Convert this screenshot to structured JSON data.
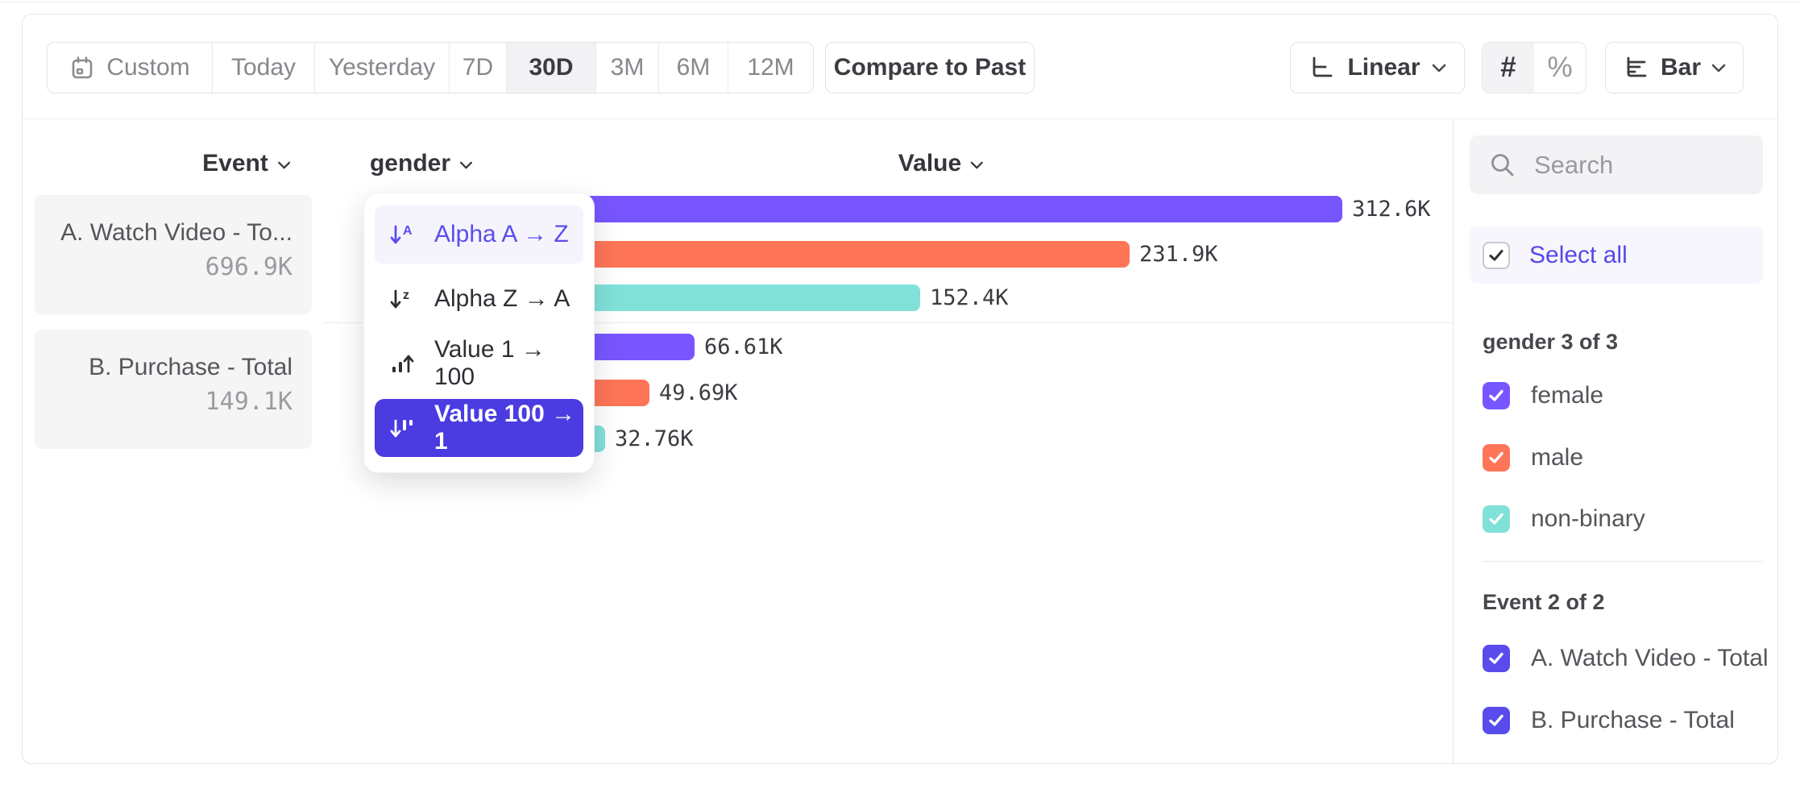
{
  "toolbar": {
    "date_ranges": [
      {
        "label": "Custom",
        "icon": "calendar-icon",
        "active": false
      },
      {
        "label": "Today",
        "active": false
      },
      {
        "label": "Yesterday",
        "active": false
      },
      {
        "label": "7D",
        "active": false
      },
      {
        "label": "30D",
        "active": true
      },
      {
        "label": "3M",
        "active": false
      },
      {
        "label": "6M",
        "active": false
      },
      {
        "label": "12M",
        "active": false
      }
    ],
    "compare_label": "Compare to Past",
    "scale_selector": {
      "label": "Linear",
      "icon": "linear-scale-icon"
    },
    "value_mode_toggle": {
      "absolute_label": "#",
      "percent_label": "%",
      "active": "absolute"
    },
    "chart_type_selector": {
      "label": "Bar",
      "icon": "bar-chart-icon"
    }
  },
  "columns": {
    "event": "Event",
    "breakdown": "gender",
    "value": "Value"
  },
  "event_cards": [
    {
      "title": "A. Watch Video - To...",
      "total": "696.9K"
    },
    {
      "title": "B. Purchase - Total",
      "total": "149.1K"
    }
  ],
  "sort_menu": {
    "items": [
      {
        "label": "Alpha A → Z",
        "icon": "sort-alpha-asc-icon",
        "state": "hovered"
      },
      {
        "label": "Alpha Z → A",
        "icon": "sort-alpha-desc-icon",
        "state": "normal"
      },
      {
        "label": "Value 1 → 100",
        "icon": "sort-value-asc-icon",
        "state": "normal"
      },
      {
        "label": "Value 100 → 1",
        "icon": "sort-value-desc-icon",
        "state": "selected"
      }
    ]
  },
  "chart_data": {
    "type": "bar",
    "orientation": "horizontal",
    "value_axis_label": "Value",
    "breakdown_property": "gender",
    "xmax": 312600,
    "grid": false,
    "groups": [
      {
        "event": "A. Watch Video - Total",
        "bars": [
          {
            "category": "female",
            "value": 312600,
            "label": "312.6K",
            "color": "#7856FF"
          },
          {
            "category": "male",
            "value": 231900,
            "label": "231.9K",
            "color": "#FF7557"
          },
          {
            "category": "non-binary",
            "value": 152400,
            "label": "152.4K",
            "color": "#80E1D9"
          }
        ]
      },
      {
        "event": "B. Purchase - Total",
        "bars": [
          {
            "category": "female",
            "value": 66610,
            "label": "66.61K",
            "color": "#7856FF"
          },
          {
            "category": "male",
            "value": 49690,
            "label": "49.69K",
            "color": "#FF7557"
          },
          {
            "category": "non-binary",
            "value": 32760,
            "label": "32.76K",
            "color": "#80E1D9"
          }
        ]
      }
    ]
  },
  "sidebar": {
    "search_placeholder": "Search",
    "select_all_label": "Select all",
    "sections": [
      {
        "title": "gender 3 of 3",
        "items": [
          {
            "label": "female",
            "checked": true,
            "color": "#7856FF"
          },
          {
            "label": "male",
            "checked": true,
            "color": "#FF7557"
          },
          {
            "label": "non-binary",
            "checked": true,
            "color": "#80E1D9"
          }
        ]
      },
      {
        "title": "Event 2 of 2",
        "items": [
          {
            "label": "A. Watch Video - Total",
            "checked": true,
            "color": "#584CEC"
          },
          {
            "label": "B. Purchase - Total",
            "checked": true,
            "color": "#584CEC"
          }
        ]
      }
    ]
  },
  "colors": {
    "accent": "#4b3ce1",
    "accent_text": "#5b4ded",
    "series_purple": "#7856FF",
    "series_salmon": "#FF7557",
    "series_teal": "#80E1D9",
    "active_segment_bg": "#f2f2f4",
    "card_bg": "#f5f5f6"
  }
}
